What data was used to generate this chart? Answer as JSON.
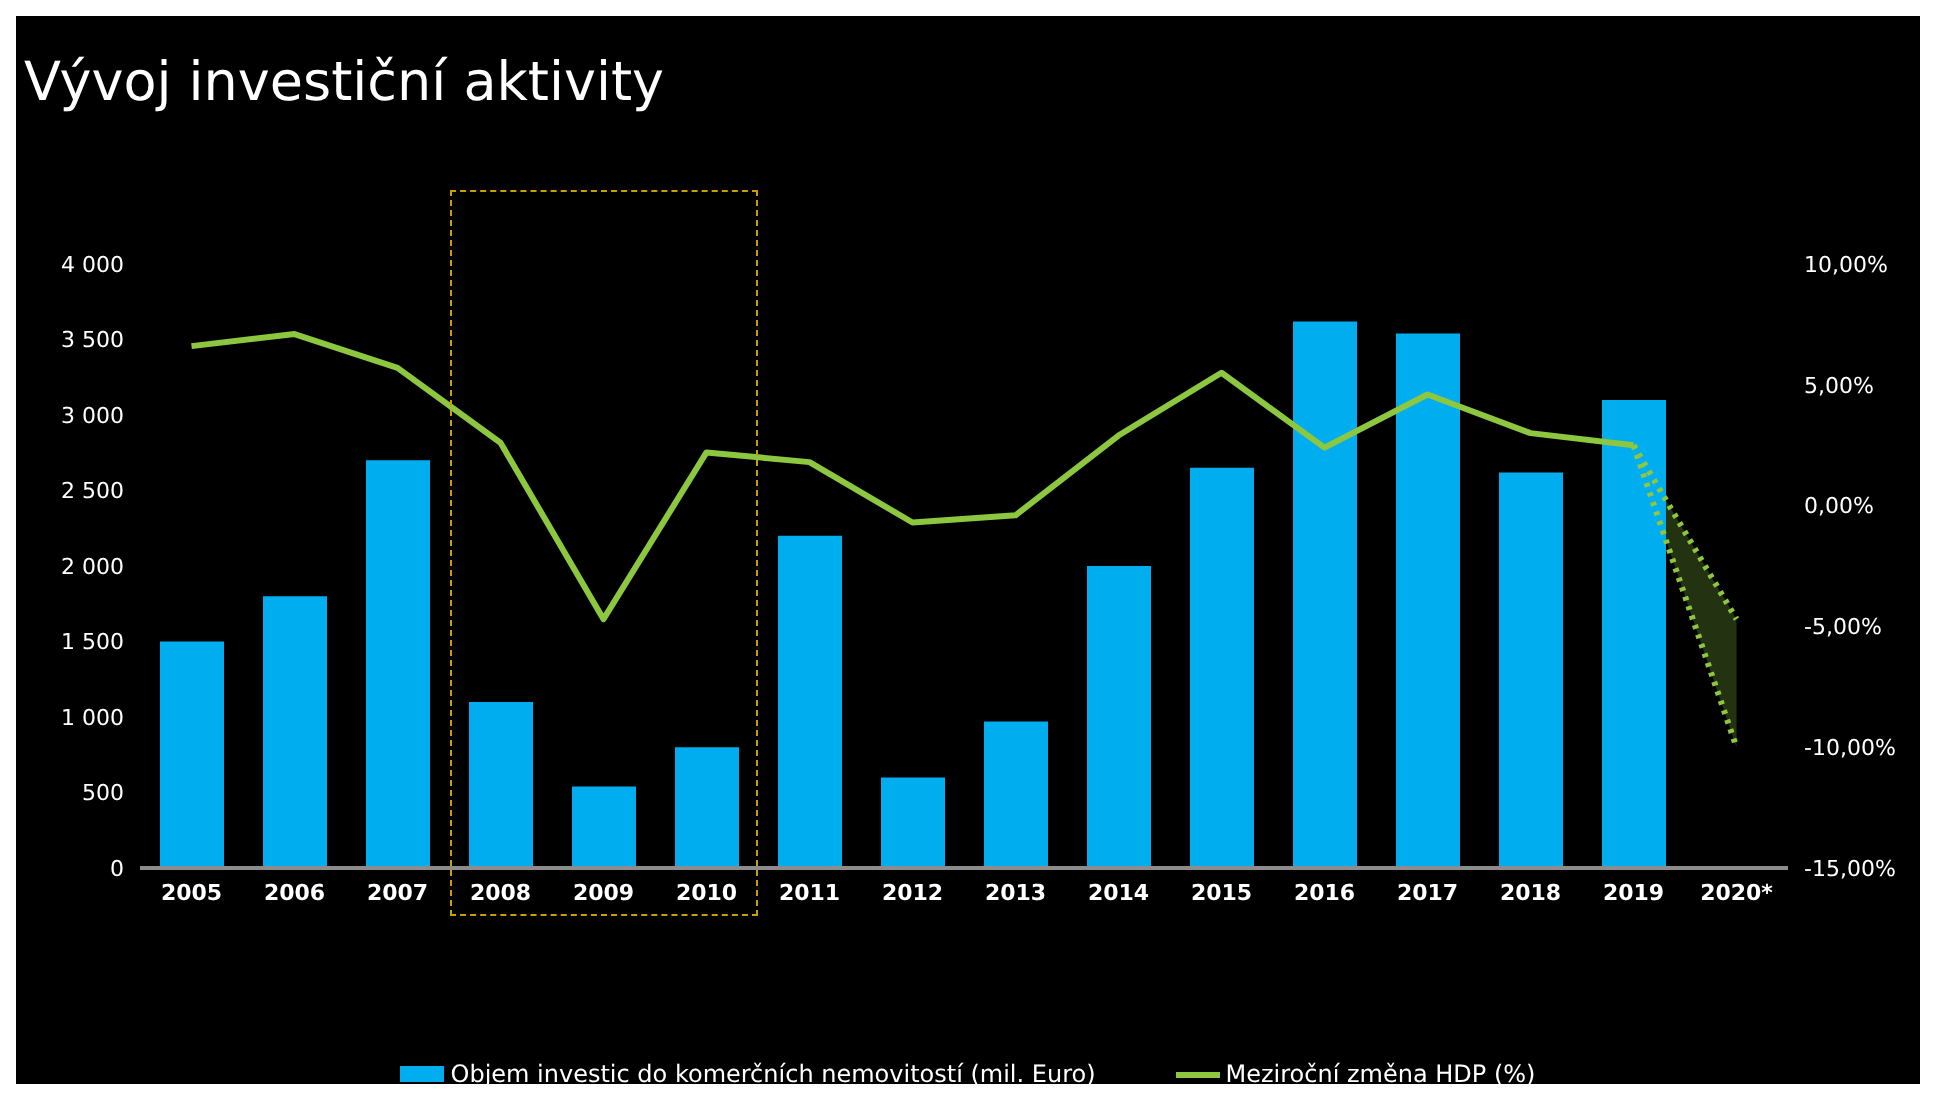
{
  "chart_data": {
    "type": "bar",
    "title": "Vývoj investiční aktivity",
    "categories": [
      "2005",
      "2006",
      "2007",
      "2008",
      "2009",
      "2010",
      "2011",
      "2012",
      "2013",
      "2014",
      "2015",
      "2016",
      "2017",
      "2018",
      "2019",
      "2020*"
    ],
    "series": [
      {
        "name": "Objem investic do komerčních nemovitostí (mil. Euro)",
        "color": "#00aeef",
        "values": [
          1500,
          1800,
          2700,
          1100,
          540,
          800,
          2200,
          600,
          970,
          2000,
          2650,
          3620,
          3540,
          2620,
          3100,
          null
        ]
      },
      {
        "name": "Meziroční změna HDP (%)",
        "type": "line",
        "axis": "y2",
        "color": "#8dc63f",
        "line_style": "solid",
        "values": [
          6.6,
          7.1,
          5.7,
          2.6,
          -4.7,
          2.2,
          1.8,
          -0.7,
          -0.4,
          2.9,
          5.5,
          2.4,
          4.6,
          3.0,
          2.5,
          null
        ]
      },
      {
        "type": "line",
        "axis": "y2",
        "color": "#8dc63f",
        "line_style": "dotted",
        "values": [
          null,
          null,
          null,
          null,
          null,
          null,
          null,
          null,
          null,
          null,
          null,
          null,
          null,
          null,
          2.5,
          -4.7
        ],
        "lower": [
          null,
          null,
          null,
          null,
          null,
          null,
          null,
          null,
          null,
          null,
          null,
          null,
          null,
          null,
          2.5,
          -10.0
        ],
        "upper": [
          null,
          null,
          null,
          null,
          null,
          null,
          null,
          null,
          null,
          null,
          null,
          null,
          null,
          null,
          2.5,
          -4.7
        ]
      },
      {
        "type": "line",
        "axis": "y2",
        "color": "#8dc63f",
        "line_style": "dotted",
        "values": [
          null,
          null,
          null,
          null,
          null,
          null,
          null,
          null,
          null,
          null,
          null,
          null,
          null,
          null,
          2.5,
          -10.0
        ]
      }
    ],
    "ylim": [
      0,
      4000
    ],
    "yticks": [
      0,
      {
        "value": 500,
        "label": "500"
      },
      {
        "value": 1000,
        "label": "1 000"
      },
      {
        "value": 1500,
        "label": "1 500"
      },
      {
        "value": 2000,
        "label": "2 000"
      },
      {
        "value": 2500,
        "label": "2 500"
      },
      {
        "value": 3000,
        "label": "3 000"
      },
      {
        "value": 3500,
        "label": "3 500"
      },
      {
        "value": 4000,
        "label": "4 000"
      }
    ],
    "y2lim": [
      -15,
      10
    ],
    "y2ticks": [
      {
        "value": -15,
        "label": "-15,00%"
      },
      {
        "value": -10,
        "label": "-10,00%"
      },
      {
        "value": -5,
        "label": "-5,00%"
      },
      {
        "value": 0,
        "label": "0,00%"
      },
      {
        "value": 5,
        "label": "5,00%"
      },
      {
        "value": 10,
        "label": "10,00%"
      }
    ],
    "legend": "bottom"
  }
}
